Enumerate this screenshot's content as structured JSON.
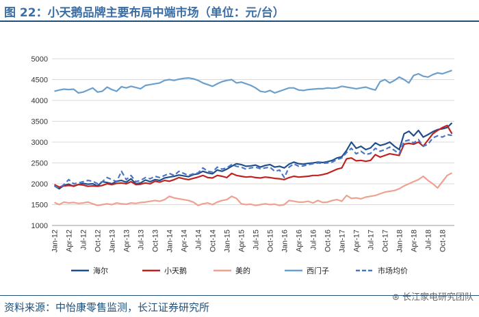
{
  "title": "图 22：小天鹅品牌主要布局中端市场（单位：元/台）",
  "source": "资料来源：中怡康零售监测，长江证券研究所",
  "watermark": "长江家电研究团队",
  "chart_data": {
    "type": "line",
    "title": "",
    "xlabel": "",
    "ylabel": "",
    "ylim": [
      1000,
      5000
    ],
    "yticks": [
      1000,
      1500,
      2000,
      2500,
      3000,
      3500,
      4000,
      4500,
      5000
    ],
    "grid": true,
    "legend_position": "bottom",
    "x": [
      "Jan-12",
      "Feb-12",
      "Mar-12",
      "Apr-12",
      "May-12",
      "Jun-12",
      "Jul-12",
      "Aug-12",
      "Sep-12",
      "Oct-12",
      "Nov-12",
      "Dec-12",
      "Jan-13",
      "Feb-13",
      "Mar-13",
      "Apr-13",
      "May-13",
      "Jun-13",
      "Jul-13",
      "Aug-13",
      "Sep-13",
      "Oct-13",
      "Nov-13",
      "Dec-13",
      "Jan-14",
      "Feb-14",
      "Mar-14",
      "Apr-14",
      "May-14",
      "Jun-14",
      "Jul-14",
      "Aug-14",
      "Sep-14",
      "Oct-14",
      "Nov-14",
      "Dec-14",
      "Jan-15",
      "Feb-15",
      "Mar-15",
      "Apr-15",
      "May-15",
      "Jun-15",
      "Jul-15",
      "Aug-15",
      "Sep-15",
      "Oct-15",
      "Nov-15",
      "Dec-15",
      "Jan-16",
      "Feb-16",
      "Mar-16",
      "Apr-16",
      "May-16",
      "Jun-16",
      "Jul-16",
      "Aug-16",
      "Sep-16",
      "Oct-16",
      "Nov-16",
      "Dec-16",
      "Jan-17",
      "Feb-17",
      "Mar-17",
      "Apr-17",
      "May-17",
      "Jun-17",
      "Jul-17",
      "Aug-17",
      "Sep-17",
      "Oct-17",
      "Nov-17",
      "Dec-17",
      "Jan-18",
      "Feb-18",
      "Mar-18",
      "Apr-18",
      "May-18",
      "Jun-18",
      "Jul-18",
      "Aug-18",
      "Sep-18",
      "Oct-18",
      "Nov-18",
      "Dec-18"
    ],
    "xticklabels": [
      "Jan-12",
      "Apr-12",
      "Jul-12",
      "Oct-12",
      "Jan-13",
      "Apr-13",
      "Jul-13",
      "Oct-13",
      "Jan-14",
      "Apr-14",
      "Jul-14",
      "Oct-14",
      "Jan-15",
      "Apr-15",
      "Jul-15",
      "Oct-15",
      "Jan-16",
      "Apr-16",
      "Jul-16",
      "Oct-16",
      "Jan-17",
      "Apr-17",
      "Jul-17",
      "Oct-17",
      "Jan-18",
      "Apr-18",
      "Jul-18",
      "Oct-18"
    ],
    "series": [
      {
        "name": "海尔",
        "color": "#1f4e8c",
        "dash": false,
        "values": [
          1950,
          1880,
          1960,
          1990,
          1940,
          1980,
          2010,
          1990,
          2000,
          1950,
          2050,
          2030,
          2000,
          2060,
          2080,
          2040,
          2120,
          2000,
          2020,
          2090,
          2050,
          2100,
          2080,
          2140,
          2160,
          2180,
          2210,
          2190,
          2170,
          2220,
          2240,
          2300,
          2260,
          2240,
          2330,
          2300,
          2350,
          2420,
          2480,
          2460,
          2420,
          2430,
          2450,
          2400,
          2440,
          2460,
          2400,
          2420,
          2380,
          2470,
          2520,
          2480,
          2470,
          2490,
          2500,
          2520,
          2510,
          2530,
          2560,
          2620,
          2650,
          2800,
          3000,
          2850,
          2900,
          2820,
          2860,
          2980,
          2920,
          2950,
          3000,
          2900,
          2820,
          3200,
          3260,
          3150,
          3280,
          3120,
          3180,
          3250,
          3300,
          3320,
          3350,
          3460
        ]
      },
      {
        "name": "小天鹅",
        "color": "#c0211f",
        "dash": false,
        "values": [
          1980,
          1920,
          1950,
          1960,
          1950,
          1980,
          1970,
          1940,
          1950,
          1940,
          1960,
          2000,
          1980,
          2010,
          2020,
          2000,
          2050,
          1980,
          1990,
          2020,
          2000,
          2060,
          2040,
          2080,
          2060,
          2100,
          2150,
          2120,
          2100,
          2130,
          2160,
          2200,
          2150,
          2140,
          2200,
          2180,
          2150,
          2250,
          2200,
          2180,
          2160,
          2170,
          2150,
          2140,
          2160,
          2150,
          2130,
          2120,
          2100,
          2150,
          2180,
          2160,
          2170,
          2180,
          2200,
          2200,
          2220,
          2250,
          2300,
          2350,
          2380,
          2600,
          2620,
          2550,
          2560,
          2540,
          2560,
          2700,
          2640,
          2680,
          2720,
          2700,
          2680,
          2950,
          2970,
          2950,
          3000,
          2900,
          3050,
          3200,
          3280,
          3350,
          3400,
          3200
        ]
      },
      {
        "name": "美的",
        "color": "#f0a090",
        "dash": false,
        "values": [
          1550,
          1500,
          1560,
          1540,
          1550,
          1530,
          1540,
          1560,
          1520,
          1480,
          1500,
          1520,
          1500,
          1540,
          1520,
          1510,
          1540,
          1530,
          1550,
          1560,
          1580,
          1600,
          1580,
          1620,
          1700,
          1660,
          1640,
          1620,
          1600,
          1560,
          1480,
          1520,
          1540,
          1500,
          1560,
          1600,
          1620,
          1700,
          1650,
          1520,
          1500,
          1510,
          1480,
          1500,
          1520,
          1500,
          1510,
          1480,
          1500,
          1600,
          1580,
          1560,
          1560,
          1580,
          1540,
          1600,
          1550,
          1560,
          1600,
          1620,
          1580,
          1720,
          1650,
          1660,
          1640,
          1680,
          1700,
          1720,
          1760,
          1800,
          1820,
          1840,
          1880,
          1950,
          2000,
          2050,
          2100,
          2180,
          2080,
          2000,
          1900,
          2050,
          2200,
          2260
        ]
      },
      {
        "name": "西门子",
        "color": "#6a9fcc",
        "dash": false,
        "values": [
          4220,
          4250,
          4270,
          4260,
          4270,
          4180,
          4200,
          4250,
          4300,
          4200,
          4220,
          4320,
          4260,
          4220,
          4330,
          4300,
          4340,
          4310,
          4280,
          4360,
          4380,
          4400,
          4420,
          4480,
          4500,
          4480,
          4510,
          4530,
          4540,
          4520,
          4480,
          4420,
          4380,
          4340,
          4400,
          4450,
          4480,
          4500,
          4420,
          4440,
          4400,
          4360,
          4300,
          4220,
          4200,
          4240,
          4180,
          4220,
          4260,
          4300,
          4300,
          4250,
          4240,
          4260,
          4270,
          4280,
          4280,
          4300,
          4290,
          4300,
          4340,
          4320,
          4300,
          4280,
          4300,
          4320,
          4280,
          4250,
          4450,
          4500,
          4420,
          4480,
          4560,
          4500,
          4420,
          4600,
          4640,
          4580,
          4560,
          4620,
          4660,
          4640,
          4680,
          4720
        ]
      },
      {
        "name": "市场均价",
        "color": "#4a74c4",
        "dash": true,
        "values": [
          1950,
          1900,
          1980,
          2100,
          2000,
          2020,
          2050,
          2080,
          2060,
          2000,
          2050,
          2150,
          2100,
          2050,
          2300,
          2100,
          2200,
          2050,
          2080,
          2150,
          2120,
          2180,
          2150,
          2200,
          2250,
          2200,
          2300,
          2250,
          2200,
          2240,
          2260,
          2380,
          2300,
          2280,
          2400,
          2350,
          2380,
          2460,
          2420,
          2400,
          2350,
          2380,
          2400,
          2360,
          2380,
          2400,
          2300,
          2330,
          2150,
          2400,
          2480,
          2420,
          2430,
          2460,
          2480,
          2500,
          2490,
          2500,
          2520,
          2580,
          2620,
          2750,
          2850,
          2720,
          2780,
          2700,
          2730,
          2850,
          2780,
          2820,
          2880,
          2800,
          2720,
          3020,
          3050,
          2980,
          3060,
          2900,
          2950,
          3100,
          3150,
          3120,
          3180,
          3160
        ]
      }
    ]
  }
}
